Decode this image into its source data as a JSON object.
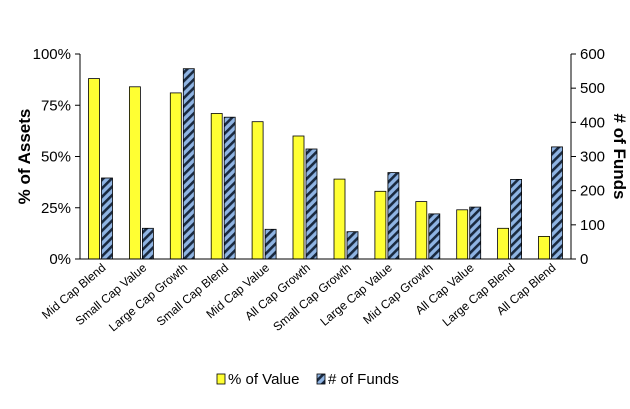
{
  "chart_data": {
    "type": "bar",
    "categories": [
      "Mid Cap Blend",
      "Small Cap Value",
      "Large Cap Growth",
      "Small Cap Blend",
      "Mid Cap Value",
      "All Cap Growth",
      "Small Cap Growth",
      "Large Cap Value",
      "Mid Cap Growth",
      "All Cap Value",
      "Large Cap Blend",
      "All Cap Blend"
    ],
    "series": [
      {
        "name": "% of Value",
        "axis": "left",
        "color": "#ffff33",
        "pattern": "solid",
        "values": [
          88,
          84,
          81,
          71,
          67,
          60,
          39,
          33,
          28,
          24,
          15,
          11
        ]
      },
      {
        "name": "# of Funds",
        "axis": "right",
        "color": "#8fb4e3",
        "pattern": "diagonal-hatch",
        "values": [
          237,
          90,
          557,
          415,
          87,
          322,
          80,
          253,
          132,
          152,
          233,
          328
        ]
      }
    ],
    "ylabel_left": "% of Assets",
    "ylabel_right": "# of Funds",
    "ylim_left": [
      0,
      100
    ],
    "yticks_left": [
      "0%",
      "25%",
      "50%",
      "75%",
      "100%"
    ],
    "ylim_right": [
      0,
      600
    ],
    "yticks_right": [
      "0",
      "100",
      "200",
      "300",
      "400",
      "500",
      "600"
    ],
    "grid": false,
    "legend_position": "bottom"
  }
}
